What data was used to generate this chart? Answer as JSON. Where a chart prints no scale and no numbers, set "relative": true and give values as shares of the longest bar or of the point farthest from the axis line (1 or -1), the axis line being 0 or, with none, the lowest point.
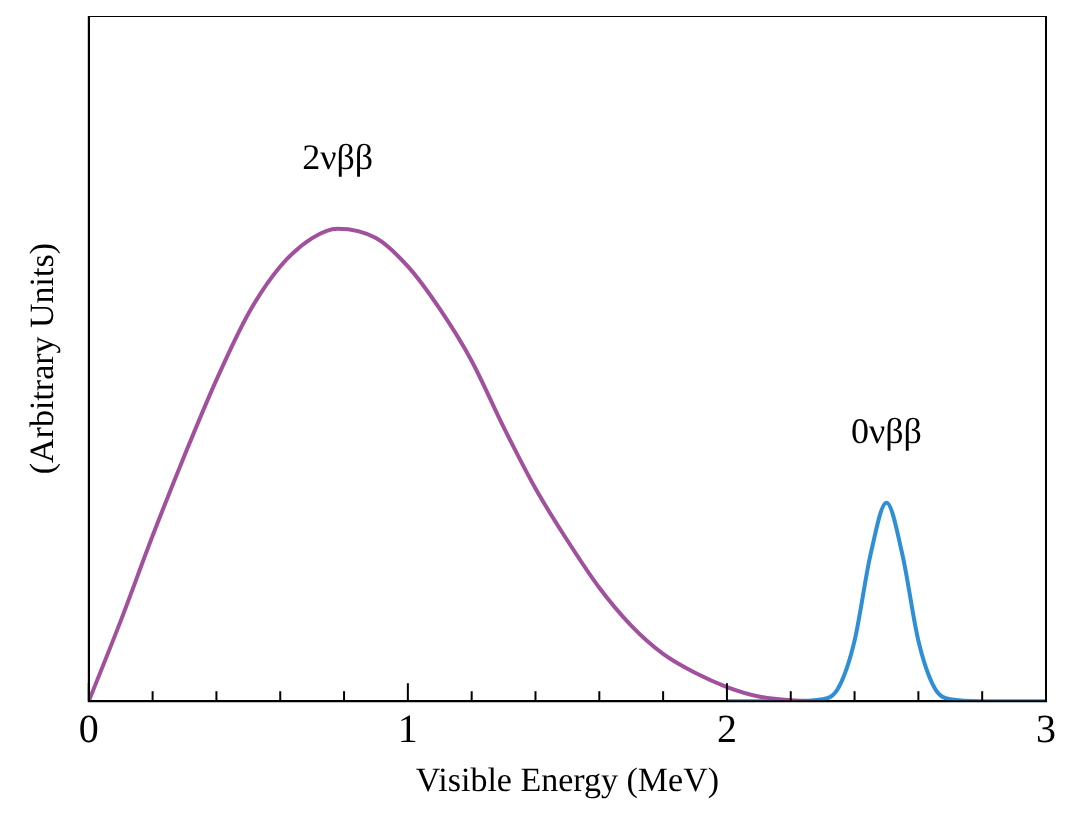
{
  "chart_data": {
    "type": "line",
    "xlabel": "Visible Energy (MeV)",
    "ylabel": "(Arbitrary Units)",
    "relative": true,
    "xlim": [
      0,
      3
    ],
    "xticks": [
      0,
      {
        "value": 0.2,
        "label": null
      },
      {
        "value": 0.4,
        "label": null
      },
      {
        "value": 0.6,
        "label": null
      },
      {
        "value": 0.8,
        "label": null
      },
      1,
      {
        "value": 1.2,
        "label": null
      },
      {
        "value": 1.4,
        "label": null
      },
      {
        "value": 1.6,
        "label": null
      },
      {
        "value": 1.8,
        "label": null
      },
      2,
      {
        "value": 2.2,
        "label": null
      },
      {
        "value": 2.4,
        "label": null
      },
      {
        "value": 2.6,
        "label": null
      },
      {
        "value": 2.8,
        "label": null
      },
      3
    ],
    "grid": false,
    "legend": false,
    "marker": "none",
    "line_style": "solid",
    "series": [
      {
        "name": "2νββ",
        "color": "#a0509c",
        "x": [
          0,
          0.1,
          0.2,
          0.3,
          0.4,
          0.5,
          0.6,
          0.7,
          0.78,
          0.9,
          1.0,
          1.1,
          1.2,
          1.3,
          1.4,
          1.5,
          1.6,
          1.7,
          1.8,
          1.9,
          2.0,
          2.1,
          2.2,
          2.3
        ],
        "values": [
          0,
          0.17,
          0.35,
          0.52,
          0.68,
          0.82,
          0.92,
          0.98,
          1.0,
          0.98,
          0.92,
          0.83,
          0.72,
          0.58,
          0.45,
          0.34,
          0.24,
          0.16,
          0.1,
          0.06,
          0.03,
          0.01,
          0.002,
          0
        ]
      },
      {
        "name": "0νββ",
        "color": "#2f8fd6",
        "x": [
          2.0,
          2.2,
          2.3,
          2.35,
          2.4,
          2.45,
          2.5,
          2.55,
          2.6,
          2.65,
          2.7,
          2.8,
          3.0
        ],
        "values": [
          0,
          0,
          0.004,
          0.029,
          0.128,
          0.31,
          0.42,
          0.31,
          0.128,
          0.029,
          0.004,
          0,
          0
        ]
      }
    ]
  }
}
